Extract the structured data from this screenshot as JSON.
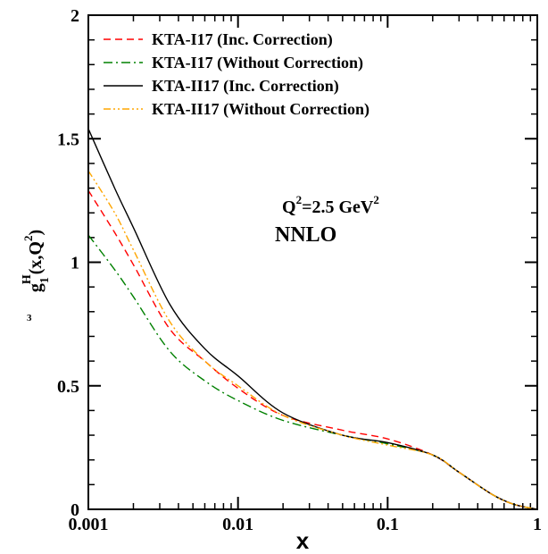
{
  "chart_data": {
    "type": "line",
    "title": "",
    "xlabel": "x",
    "ylabel": {
      "main": "g",
      "sub": "1",
      "sup": "H",
      "pre": "3",
      "args": "(x,Q",
      "args_sup": "2",
      "args_end": ")"
    },
    "xscale": "log",
    "xlim": [
      0.001,
      1
    ],
    "ylim": [
      0,
      2
    ],
    "x_ticks": [
      0.001,
      0.01,
      0.1,
      1
    ],
    "x_tick_labels": [
      "0.001",
      "0.01",
      "0.1",
      "1"
    ],
    "y_ticks": [
      0,
      0.5,
      1,
      1.5,
      2
    ],
    "y_tick_labels": [
      "0",
      "0.5",
      "1",
      "1.5",
      "2"
    ],
    "grid": false,
    "legend_position": "top-left",
    "annotations": {
      "q2_prefix": "Q",
      "q2_sup": "2",
      "q2_mid": "=2.5 GeV",
      "q2_sup2": "2",
      "order": "NNLO"
    },
    "series": [
      {
        "name": "KTA-I17 (Inc. Correction)",
        "color": "#ff0000",
        "dash": "8,5",
        "x": [
          0.001,
          0.0015,
          0.002,
          0.0035,
          0.006,
          0.01,
          0.02,
          0.05,
          0.1,
          0.2,
          0.3,
          0.5,
          0.7,
          1.0
        ],
        "y": [
          1.29,
          1.12,
          0.99,
          0.73,
          0.6,
          0.49,
          0.38,
          0.32,
          0.285,
          0.22,
          0.15,
          0.06,
          0.02,
          0.0
        ]
      },
      {
        "name": "KTA-I17 (Without Correction)",
        "color": "#008000",
        "dash": "10,4,2,4",
        "x": [
          0.001,
          0.0015,
          0.002,
          0.0035,
          0.006,
          0.01,
          0.02,
          0.05,
          0.1,
          0.2,
          0.3,
          0.5,
          0.7,
          1.0
        ],
        "y": [
          1.11,
          0.97,
          0.86,
          0.64,
          0.52,
          0.44,
          0.36,
          0.3,
          0.265,
          0.22,
          0.15,
          0.06,
          0.02,
          0.0
        ]
      },
      {
        "name": "KTA-II17 (Inc. Correction)",
        "color": "#000000",
        "dash": "",
        "x": [
          0.001,
          0.0015,
          0.002,
          0.0035,
          0.006,
          0.01,
          0.02,
          0.05,
          0.1,
          0.2,
          0.3,
          0.5,
          0.7,
          1.0
        ],
        "y": [
          1.54,
          1.3,
          1.14,
          0.83,
          0.65,
          0.54,
          0.39,
          0.3,
          0.27,
          0.22,
          0.15,
          0.06,
          0.02,
          0.0
        ]
      },
      {
        "name": "KTA-II17 (Without Correction)",
        "color": "#ffa500",
        "dash": "8,3,2,3,2,3",
        "x": [
          0.001,
          0.0015,
          0.002,
          0.0035,
          0.006,
          0.01,
          0.02,
          0.05,
          0.1,
          0.2,
          0.3,
          0.5,
          0.7,
          1.0
        ],
        "y": [
          1.37,
          1.2,
          1.05,
          0.76,
          0.6,
          0.5,
          0.38,
          0.3,
          0.26,
          0.22,
          0.15,
          0.06,
          0.02,
          0.0
        ]
      }
    ]
  }
}
